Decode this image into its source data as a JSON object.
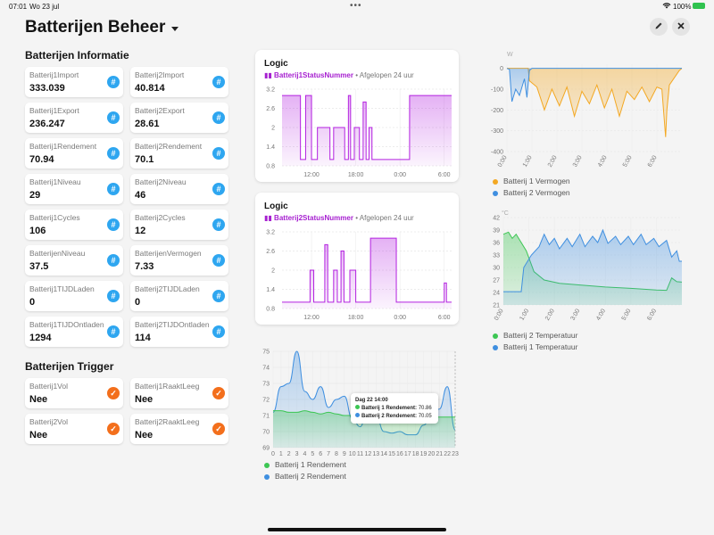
{
  "statusbar": {
    "time": "07:01",
    "date": "Wo 23 jul",
    "battery": "100%"
  },
  "header": {
    "title": "Batterijen Beheer",
    "edit_icon": "pencil-icon",
    "close_icon": "close-icon"
  },
  "info": {
    "title": "Batterijen Informatie",
    "tiles": [
      {
        "label": "Batterij1Import",
        "value": "333.039"
      },
      {
        "label": "Batterij2Import",
        "value": "40.814"
      },
      {
        "label": "Batterij1Export",
        "value": "236.247"
      },
      {
        "label": "Batterij2Export",
        "value": "28.61"
      },
      {
        "label": "Batterij1Rendement",
        "value": "70.94"
      },
      {
        "label": "Batterij2Rendement",
        "value": "70.1"
      },
      {
        "label": "Batterij1Niveau",
        "value": "29"
      },
      {
        "label": "Batterij2Niveau",
        "value": "46"
      },
      {
        "label": "Batterij1Cycles",
        "value": "106"
      },
      {
        "label": "Batterij2Cycles",
        "value": "12"
      },
      {
        "label": "BatterijenNiveau",
        "value": "37.5"
      },
      {
        "label": "BatterijenVermogen",
        "value": "7.33"
      },
      {
        "label": "Batterij1TIJDLaden",
        "value": "0"
      },
      {
        "label": "Batterij2TIJDLaden",
        "value": "0"
      },
      {
        "label": "Batterij1TIJDOntladen",
        "value": "1294"
      },
      {
        "label": "Batterij2TIJDOntladen",
        "value": "114"
      }
    ]
  },
  "trigger": {
    "title": "Batterijen Trigger",
    "tiles": [
      {
        "label": "Batterij1Vol",
        "value": "Nee"
      },
      {
        "label": "Batterij1RaaktLeeg",
        "value": "Nee"
      },
      {
        "label": "Batterij2Vol",
        "value": "Nee"
      },
      {
        "label": "Batterij2RaaktLeeg",
        "value": "Nee"
      }
    ]
  },
  "logic1": {
    "title": "Logic",
    "entity": "Batterij1StatusNummer",
    "period": "• Afgelopen 24 uur"
  },
  "logic2": {
    "title": "Logic",
    "entity": "Batterij2StatusNummer",
    "period": "• Afgelopen 24 uur"
  },
  "tooltip": {
    "title": "Dag 22 14:00",
    "row1_label": "Batterij 1 Rendement:",
    "row1_value": "70.86",
    "row2_label": "Batterij 2 Rendement:",
    "row2_value": "70.05"
  },
  "legends": {
    "rendement": [
      "Batterij 1 Rendement",
      "Batterij 2 Rendement"
    ],
    "vermogen": [
      "Batterij 1 Vermogen",
      "Batterij 2 Vermogen"
    ],
    "temperatuur": [
      "Batterij 2 Temperatuur",
      "Batterij 1 Temperatuur"
    ]
  },
  "colors": {
    "accent_blue": "#2ea6f0",
    "accent_orange": "#f36f1c",
    "purple": "#b321e0",
    "green": "#3cc653",
    "series_blue": "#3f8fe0",
    "series_orange": "#f3a823"
  },
  "chart_data": [
    {
      "type": "area",
      "name": "logic1",
      "xlabel": "",
      "ylabel": "",
      "x_ticks": [
        "12:00",
        "18:00",
        "0:00",
        "6:00"
      ],
      "y_ticks": [
        "3.2",
        "2.6",
        "2",
        "1.4",
        "0.8"
      ],
      "ylim": [
        0.8,
        3.2
      ],
      "x_hours_range": [
        8,
        31
      ],
      "series": [
        {
          "values": [
            [
              8,
              3.0
            ],
            [
              10.5,
              3.0
            ],
            [
              10.5,
              1.0
            ],
            [
              11.2,
              1.0
            ],
            [
              11.2,
              3.0
            ],
            [
              12.0,
              3.0
            ],
            [
              12.0,
              1.0
            ],
            [
              12.8,
              1.0
            ],
            [
              12.8,
              2.0
            ],
            [
              14.5,
              2.0
            ],
            [
              14.5,
              1.0
            ],
            [
              15.0,
              1.0
            ],
            [
              15.0,
              2.0
            ],
            [
              16.5,
              2.0
            ],
            [
              16.5,
              1.0
            ],
            [
              17.0,
              1.0
            ],
            [
              17.0,
              3.0
            ],
            [
              17.3,
              3.0
            ],
            [
              17.3,
              1.0
            ],
            [
              17.8,
              1.0
            ],
            [
              17.8,
              2.0
            ],
            [
              18.5,
              2.0
            ],
            [
              18.5,
              1.0
            ],
            [
              19.0,
              1.0
            ],
            [
              19.0,
              2.8
            ],
            [
              19.4,
              2.8
            ],
            [
              19.4,
              1.0
            ],
            [
              19.8,
              1.0
            ],
            [
              19.8,
              2.0
            ],
            [
              20.2,
              2.0
            ],
            [
              20.2,
              1.0
            ],
            [
              25.3,
              1.0
            ],
            [
              25.3,
              3.0
            ],
            [
              31,
              3.0
            ]
          ]
        }
      ]
    },
    {
      "type": "area",
      "name": "logic2",
      "xlabel": "",
      "ylabel": "",
      "x_ticks": [
        "12:00",
        "18:00",
        "0:00",
        "6:00"
      ],
      "y_ticks": [
        "3.2",
        "2.6",
        "2",
        "1.4",
        "0.8"
      ],
      "ylim": [
        0.8,
        3.2
      ],
      "x_hours_range": [
        8,
        31
      ],
      "series": [
        {
          "values": [
            [
              8,
              1.0
            ],
            [
              11.8,
              1.0
            ],
            [
              11.8,
              2.0
            ],
            [
              12.3,
              2.0
            ],
            [
              12.3,
              1.0
            ],
            [
              13.8,
              1.0
            ],
            [
              13.8,
              2.8
            ],
            [
              14.2,
              2.8
            ],
            [
              14.2,
              1.0
            ],
            [
              15.0,
              1.0
            ],
            [
              15.0,
              2.0
            ],
            [
              15.5,
              2.0
            ],
            [
              15.5,
              1.0
            ],
            [
              16.0,
              1.0
            ],
            [
              16.0,
              2.6
            ],
            [
              16.4,
              2.6
            ],
            [
              16.4,
              1.0
            ],
            [
              17.2,
              1.0
            ],
            [
              17.2,
              2.0
            ],
            [
              18.0,
              2.0
            ],
            [
              18.0,
              1.0
            ],
            [
              20.0,
              1.0
            ],
            [
              20.0,
              3.0
            ],
            [
              23.5,
              3.0
            ],
            [
              23.5,
              1.0
            ],
            [
              30.0,
              1.0
            ],
            [
              30.0,
              1.6
            ],
            [
              30.3,
              1.6
            ],
            [
              30.3,
              1.0
            ],
            [
              31,
              1.0
            ]
          ]
        }
      ]
    },
    {
      "type": "area",
      "name": "rendement",
      "xlabel": "",
      "ylabel": "",
      "categories": [
        "0",
        "1",
        "2",
        "3",
        "4",
        "5",
        "6",
        "7",
        "8",
        "9",
        "10",
        "11",
        "12",
        "13",
        "14",
        "15",
        "16",
        "17",
        "18",
        "19",
        "20",
        "21",
        "22",
        "23"
      ],
      "y_ticks": [
        "75",
        "74",
        "73",
        "72",
        "71",
        "70",
        "69"
      ],
      "ylim": [
        69,
        75
      ],
      "series": [
        {
          "name": "Batterij 1 Rendement",
          "values": [
            71.3,
            71.3,
            71.2,
            71.2,
            71.3,
            71.2,
            71.1,
            71.2,
            71.1,
            71.0,
            71.0,
            71.1,
            71.0,
            71.0,
            70.9,
            70.9,
            70.9,
            70.9,
            70.9,
            70.9,
            70.9,
            70.9,
            70.9,
            70.9
          ]
        },
        {
          "name": "Batterij 2 Rendement",
          "values": [
            71.2,
            72.8,
            73.0,
            75.0,
            72.5,
            72.0,
            72.8,
            71.5,
            72.0,
            72.2,
            70.8,
            70.3,
            71.6,
            71.0,
            70.0,
            69.9,
            70.0,
            69.8,
            69.8,
            70.4,
            71.0,
            71.4,
            72.8,
            70.1
          ]
        }
      ]
    },
    {
      "type": "area",
      "name": "vermogen",
      "ylabel": "W",
      "xlabel": "",
      "x_ticks": [
        "0:00",
        "1:00",
        "2:00",
        "3:00",
        "4:00",
        "5:00",
        "6:00"
      ],
      "y_ticks": [
        "0",
        "-100",
        "-200",
        "-300",
        "-400"
      ],
      "ylim": [
        -400,
        20
      ],
      "series": [
        {
          "name": "Batterij 1 Vermogen",
          "values": [
            [
              0,
              0
            ],
            [
              0.85,
              0
            ],
            [
              0.9,
              -60
            ],
            [
              1.2,
              -90
            ],
            [
              1.5,
              -200
            ],
            [
              1.8,
              -100
            ],
            [
              2.1,
              -180
            ],
            [
              2.4,
              -90
            ],
            [
              2.7,
              -230
            ],
            [
              3.0,
              -110
            ],
            [
              3.3,
              -170
            ],
            [
              3.6,
              -80
            ],
            [
              3.9,
              -190
            ],
            [
              4.2,
              -100
            ],
            [
              4.5,
              -230
            ],
            [
              4.8,
              -110
            ],
            [
              5.1,
              -150
            ],
            [
              5.4,
              -90
            ],
            [
              5.7,
              -160
            ],
            [
              6.0,
              -90
            ],
            [
              6.2,
              -100
            ],
            [
              6.35,
              -330
            ],
            [
              6.4,
              -200
            ],
            [
              6.5,
              -80
            ],
            [
              6.9,
              -10
            ],
            [
              7.0,
              0
            ]
          ]
        },
        {
          "name": "Batterij 2 Vermogen",
          "values": [
            [
              0,
              0
            ],
            [
              0.1,
              -5
            ],
            [
              0.2,
              -160
            ],
            [
              0.35,
              -100
            ],
            [
              0.5,
              -130
            ],
            [
              0.7,
              -50
            ],
            [
              0.8,
              -140
            ],
            [
              0.9,
              -10
            ],
            [
              1.0,
              0
            ],
            [
              7.0,
              0
            ]
          ]
        }
      ]
    },
    {
      "type": "area",
      "name": "temperatuur",
      "ylabel": "°C",
      "xlabel": "",
      "x_ticks": [
        "0:00",
        "1:00",
        "2:00",
        "3:00",
        "4:00",
        "5:00",
        "6:00"
      ],
      "y_ticks": [
        "42",
        "39",
        "36",
        "33",
        "30",
        "27",
        "24",
        "21"
      ],
      "ylim": [
        21,
        42
      ],
      "series": [
        {
          "name": "Batterij 2 Temperatuur",
          "values": [
            [
              0,
              38
            ],
            [
              0.2,
              38.5
            ],
            [
              0.35,
              37
            ],
            [
              0.5,
              38
            ],
            [
              0.7,
              36
            ],
            [
              0.9,
              34
            ],
            [
              1.2,
              29
            ],
            [
              1.6,
              27
            ],
            [
              2.2,
              26.2
            ],
            [
              3,
              25.8
            ],
            [
              4,
              25.3
            ],
            [
              5,
              25
            ],
            [
              6,
              24.6
            ],
            [
              6.4,
              24.5
            ],
            [
              6.6,
              27.5
            ],
            [
              6.8,
              26.6
            ],
            [
              7.0,
              26.5
            ]
          ]
        },
        {
          "name": "Batterij 1 Temperatuur",
          "values": [
            [
              0,
              24.2
            ],
            [
              0.7,
              24.2
            ],
            [
              0.8,
              30
            ],
            [
              1.1,
              33
            ],
            [
              1.4,
              35
            ],
            [
              1.6,
              38
            ],
            [
              1.8,
              35.5
            ],
            [
              2.0,
              37
            ],
            [
              2.2,
              34.5
            ],
            [
              2.5,
              37
            ],
            [
              2.7,
              35
            ],
            [
              3.0,
              38
            ],
            [
              3.2,
              35
            ],
            [
              3.5,
              37.5
            ],
            [
              3.7,
              36
            ],
            [
              3.9,
              39
            ],
            [
              4.1,
              35.8
            ],
            [
              4.4,
              37.5
            ],
            [
              4.6,
              35.5
            ],
            [
              4.9,
              37.5
            ],
            [
              5.1,
              35.5
            ],
            [
              5.4,
              38
            ],
            [
              5.6,
              35.5
            ],
            [
              5.9,
              37
            ],
            [
              6.1,
              35
            ],
            [
              6.4,
              36.5
            ],
            [
              6.6,
              32.5
            ],
            [
              6.8,
              34
            ],
            [
              6.9,
              31.5
            ],
            [
              7.0,
              31.5
            ]
          ]
        }
      ]
    }
  ]
}
